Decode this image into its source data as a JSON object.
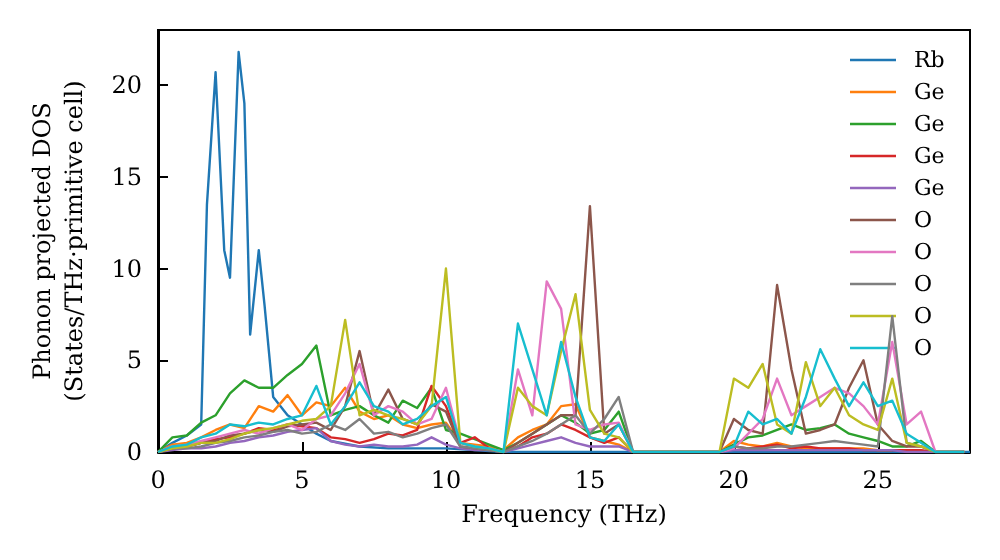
{
  "chart_data": {
    "type": "line",
    "xlabel": "Frequency (THz)",
    "ylabel": "Phonon projected DOS\n(States/THz·primitive cell)",
    "x": [
      0,
      0.5,
      1,
      1.5,
      2,
      2.5,
      3,
      3.5,
      4,
      4.5,
      5,
      5.5,
      6,
      6.5,
      7,
      7.5,
      8,
      8.5,
      9,
      9.5,
      10,
      10.5,
      11,
      11.5,
      12,
      12.5,
      13,
      13.5,
      14,
      14.5,
      15,
      15.5,
      16,
      16.5,
      17,
      17.5,
      18,
      18.5,
      19,
      19.5,
      20,
      20.5,
      21,
      21.5,
      22,
      22.5,
      23,
      23.5,
      24,
      24.5,
      25,
      25.5,
      26,
      26.5,
      27,
      27.5,
      28
    ],
    "xlim": [
      0,
      28.2
    ],
    "ylim": [
      0,
      23
    ],
    "xticks": [
      0,
      5,
      10,
      15,
      20,
      25
    ],
    "yticks": [
      0,
      5,
      10,
      15,
      20
    ],
    "grid": false,
    "legend": "top right",
    "marker": "none",
    "line_style": "solid",
    "series": [
      {
        "name": "Rb",
        "color": "#1f77b4",
        "x": [
          0,
          0.5,
          1,
          1.5,
          1.7,
          2.0,
          2.3,
          2.5,
          2.8,
          3.0,
          3.2,
          3.5,
          3.7,
          4.0,
          4.5,
          5,
          5.5,
          6,
          7,
          8,
          9,
          10,
          11,
          12,
          16,
          20,
          28.2
        ],
        "values": [
          0,
          0.5,
          0.9,
          1.5,
          13.5,
          20.7,
          11,
          9.5,
          21.8,
          19,
          6.4,
          11,
          8,
          3,
          2,
          1.5,
          1,
          0.6,
          0.3,
          0.2,
          0.2,
          0.2,
          0.1,
          0,
          0,
          0,
          0
        ]
      },
      {
        "name": "Ge",
        "color": "#ff7f0e",
        "values": [
          0,
          0.4,
          0.5,
          0.8,
          1.2,
          1.5,
          1.3,
          2.5,
          2.2,
          3.1,
          2,
          2.7,
          2.5,
          3.5,
          2.2,
          1.8,
          2,
          1.5,
          1.3,
          1.5,
          1.6,
          0.5,
          0.4,
          0.3,
          0.1,
          0.8,
          1.2,
          1.5,
          2.5,
          2.6,
          0.8,
          0.6,
          0.4,
          0,
          0,
          0,
          0,
          0,
          0,
          0,
          0.6,
          0.4,
          0.3,
          0.5,
          0.3,
          0.2,
          0.2,
          0.2,
          0.2,
          0.2,
          0.1,
          0.1,
          null,
          null,
          null,
          null,
          null
        ]
      },
      {
        "name": "Ge",
        "color": "#2ca02c",
        "values": [
          0,
          0.8,
          0.9,
          1.6,
          2,
          3.2,
          3.9,
          3.5,
          3.5,
          4.2,
          4.8,
          5.8,
          2,
          2.3,
          2.5,
          2,
          1.6,
          2.8,
          2.4,
          3.5,
          1.2,
          1,
          0.7,
          0.4,
          0.1,
          0.5,
          1,
          1.5,
          2,
          1.6,
          1,
          1.2,
          2.2,
          0,
          0,
          0,
          0,
          0,
          0,
          0,
          0.4,
          0.8,
          0.9,
          1.2,
          1.5,
          1.2,
          1.3,
          1.5,
          1,
          0.8,
          0.6,
          0.3,
          0.3,
          0.6,
          0,
          0,
          0
        ]
      },
      {
        "name": "Ge",
        "color": "#d62728",
        "values": [
          0,
          0.2,
          0.3,
          0.5,
          0.7,
          0.8,
          1,
          1.3,
          1.2,
          1.5,
          1.4,
          1.3,
          0.8,
          0.7,
          0.5,
          0.7,
          1,
          0.9,
          1.2,
          3.6,
          2.5,
          0.5,
          0.8,
          0.2,
          0,
          0.3,
          0.8,
          1,
          1.5,
          1.2,
          0.8,
          0.5,
          0.8,
          0,
          0,
          0,
          0,
          0,
          0,
          0,
          0.3,
          0.2,
          0.3,
          0.4,
          0.2,
          0.3,
          0.2,
          0.2,
          0.2,
          0.1,
          0.1,
          0.1,
          0.1,
          0.1,
          0,
          0,
          0
        ]
      },
      {
        "name": "Ge",
        "color": "#9467bd",
        "values": [
          0,
          0.1,
          0.2,
          0.2,
          0.3,
          0.5,
          0.6,
          0.8,
          0.9,
          1.1,
          1.2,
          1.3,
          0.6,
          0.4,
          0.3,
          0.4,
          0.3,
          0.3,
          0.4,
          0.8,
          0.4,
          0.2,
          0.1,
          0.1,
          0,
          0.2,
          0.4,
          0.6,
          0.8,
          0.5,
          0.3,
          0.3,
          0.3,
          0,
          0,
          0,
          0,
          0,
          0,
          0,
          0.1,
          0.1,
          0.1,
          0.1,
          0.1,
          0.1,
          0.1,
          0.1,
          0.1,
          0.1,
          0.1,
          0.1,
          0,
          0,
          0,
          0,
          0
        ]
      },
      {
        "name": "O",
        "color": "#8c564b",
        "values": [
          0,
          0.2,
          0.3,
          0.5,
          0.6,
          0.9,
          1,
          1.2,
          1.1,
          1.4,
          1.5,
          1.6,
          1.2,
          2.5,
          5.5,
          2,
          3.4,
          1.8,
          1.5,
          2.6,
          2.2,
          0.3,
          0.2,
          0.1,
          0,
          0.5,
          1,
          1.5,
          2,
          2,
          13.4,
          1,
          1.5,
          0,
          0,
          0,
          0,
          0,
          0,
          0,
          1.8,
          1.2,
          1,
          9.1,
          4.5,
          1,
          1.2,
          1.5,
          3.5,
          5,
          1.5,
          0.6,
          0.3,
          0.3,
          0,
          0,
          0
        ]
      },
      {
        "name": "O",
        "color": "#e377c2",
        "values": [
          0,
          0.3,
          0.4,
          0.6,
          0.8,
          1,
          1.2,
          1,
          1.3,
          1.5,
          1.2,
          1.8,
          2,
          3.2,
          4.8,
          2,
          2.5,
          2.2,
          1.5,
          1.8,
          3.5,
          0.5,
          0.3,
          0.2,
          0,
          4.5,
          2,
          9.3,
          7.8,
          1.5,
          1.2,
          1.5,
          1.6,
          0,
          0,
          0,
          0,
          0,
          0,
          0,
          0.2,
          1,
          1.8,
          4,
          2,
          2.5,
          3,
          3.5,
          3.2,
          2.5,
          1.5,
          6,
          1.5,
          2.2,
          0,
          0,
          0
        ]
      },
      {
        "name": "O",
        "color": "#7f7f7f",
        "values": [
          0,
          0.2,
          0.2,
          0.3,
          0.5,
          0.6,
          0.8,
          0.9,
          1.1,
          1.2,
          1,
          1.1,
          1.5,
          1.2,
          1.8,
          1,
          1.1,
          0.8,
          1,
          1.3,
          1.5,
          0.3,
          0.2,
          0.1,
          0,
          0.3,
          0.6,
          1,
          1.5,
          2,
          1,
          1.8,
          3,
          0,
          0,
          0,
          0,
          0,
          0,
          0,
          0.3,
          0.2,
          0.2,
          0.3,
          0.3,
          0.4,
          0.5,
          0.6,
          0.5,
          0.4,
          0.3,
          7.4,
          0.5,
          0.3,
          0,
          0,
          0
        ]
      },
      {
        "name": "O",
        "color": "#bcbd22",
        "values": [
          0,
          0.2,
          0.3,
          0.5,
          0.5,
          0.7,
          1,
          1.2,
          1.3,
          1.5,
          1.7,
          1.8,
          2.5,
          7.2,
          2,
          2.3,
          2,
          1.8,
          1.5,
          2.5,
          10,
          0.5,
          0.3,
          0.2,
          0,
          3.5,
          2.5,
          2,
          5.5,
          8.6,
          2.3,
          1,
          0.8,
          0,
          0,
          0,
          0,
          0,
          0,
          0,
          4,
          3.5,
          4.8,
          1.5,
          1,
          4.9,
          2.5,
          3.5,
          2,
          1.5,
          1.2,
          4,
          0.5,
          0.3,
          0,
          0,
          0
        ]
      },
      {
        "name": "O",
        "color": "#17becf",
        "values": [
          0,
          0.3,
          0.4,
          0.8,
          1,
          1.5,
          1.4,
          1.6,
          1.5,
          1.8,
          2,
          3.6,
          1.5,
          2.5,
          3.8,
          2.5,
          2.2,
          1.5,
          1.8,
          2.5,
          3,
          0.5,
          0.3,
          0.2,
          0,
          7,
          4.5,
          2,
          6,
          3,
          0.8,
          0.6,
          1.5,
          0,
          0,
          0,
          0,
          0,
          0,
          0,
          0.3,
          2.2,
          1.5,
          1.8,
          1,
          3,
          5.6,
          4,
          2.5,
          3.8,
          2.5,
          2.8,
          1,
          0.5,
          0,
          0,
          0
        ]
      }
    ]
  }
}
